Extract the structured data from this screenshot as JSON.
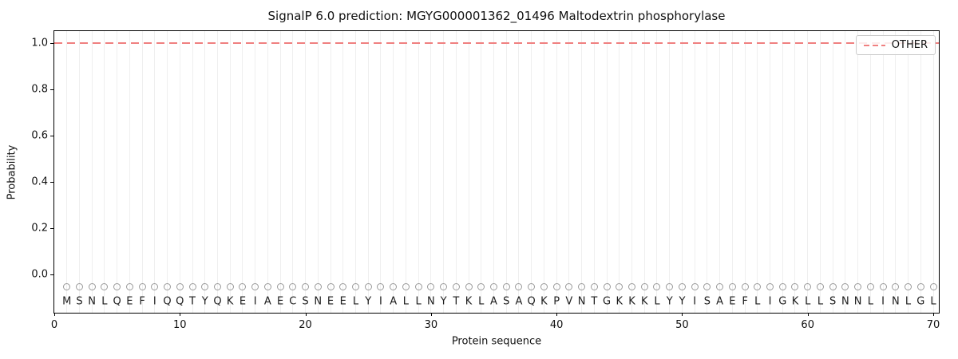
{
  "title": "SignalP 6.0 prediction: MGYG000001362_01496 Maltodextrin phosphorylase",
  "axes": {
    "x_label": "Protein sequence",
    "y_label": "Probability",
    "x_ticks": [
      0,
      10,
      20,
      30,
      40,
      50,
      60,
      70
    ],
    "y_ticks": [
      "0.0",
      "0.2",
      "0.4",
      "0.6",
      "0.8",
      "1.0"
    ]
  },
  "legend": {
    "items": [
      {
        "label": "OTHER",
        "color": "#f08080",
        "line_style": "dashed"
      }
    ]
  },
  "sequence": "MSNLQEFIQQTYQKEIAECSNEELYIALLNYTKLASAQKPVNTGKKKLYYISAEFLIGKLLSNNLINLGL",
  "chart_data": {
    "type": "line",
    "title": "SignalP 6.0 prediction: MGYG000001362_01496 Maltodextrin phosphorylase",
    "xlabel": "Protein sequence",
    "ylabel": "Probability",
    "xlim": [
      0,
      70.6
    ],
    "ylim": [
      -0.17,
      1.05
    ],
    "x_ticks": [
      0,
      10,
      20,
      30,
      40,
      50,
      60,
      70
    ],
    "y_ticks": [
      0.0,
      0.2,
      0.4,
      0.6,
      0.8,
      1.0
    ],
    "grid": "vertical gridline at each residue position 1-70",
    "grid_color": "#efefef",
    "legend_position": "upper right",
    "series": [
      {
        "name": "OTHER",
        "style": "dashed",
        "color": "#f08080",
        "x_start": 1,
        "x_end": 70,
        "constant_y": 1.0
      }
    ],
    "sequence_track": {
      "sequence": "MSNLQEFIQQTYQKEIAECSNEELYIALLNYTKLASAQKPVNTGKKKLYYISAEFLIGKLLSNNLINLGL",
      "first_position": 1,
      "last_position": 70,
      "marker": "open-circle",
      "marker_color": "#9a9a9a",
      "marker_y": -0.055,
      "letter_y": -0.11
    }
  }
}
